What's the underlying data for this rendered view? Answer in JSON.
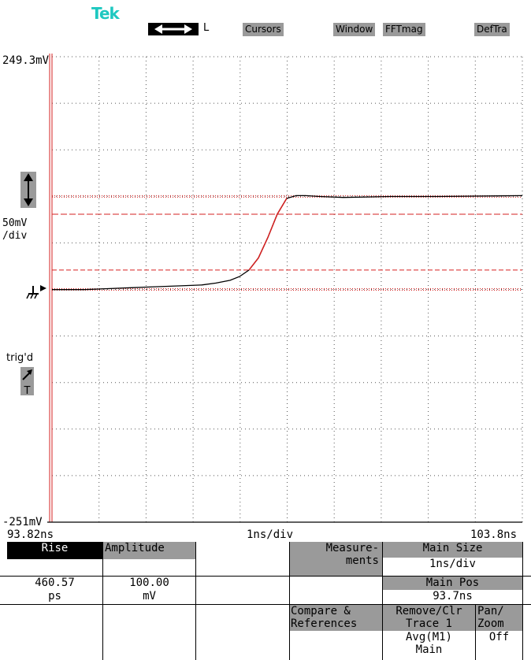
{
  "brand": "Tek",
  "top_bar": {
    "arrow_label": "L",
    "buttons": [
      "Cursors",
      "Window",
      "FFTmag",
      "DefTra"
    ]
  },
  "scope": {
    "y_top_label": "249.3mV",
    "y_bottom_label": "-251mV",
    "volts_div_line1": "50mV",
    "volts_div_line2": "/div",
    "trig_label": "trig'd",
    "trig_t": "T",
    "x_left_label": "93.82ns",
    "x_mid_label": "1ns/div",
    "x_right_label": "103.8ns"
  },
  "chart_data": {
    "type": "line",
    "xlim": [
      93.82,
      103.8
    ],
    "ylim": [
      -251,
      249.3
    ],
    "xunit": "ns",
    "yunit": "mV",
    "grid": true,
    "series": [
      {
        "color": "#000000",
        "x": [
          93.82,
          94.5,
          95.0,
          95.5,
          96.0,
          96.5,
          97.0,
          97.3,
          97.6,
          97.8,
          98.0,
          98.2,
          98.4,
          98.6,
          98.8,
          99.0,
          99.2,
          99.5,
          100.0,
          101.0,
          102.0,
          103.8
        ],
        "y": [
          -1,
          -1,
          0,
          1,
          2,
          3,
          4,
          6,
          9,
          13,
          20,
          33,
          55,
          80,
          97,
          100,
          100,
          99,
          98,
          99,
          99,
          100
        ]
      }
    ],
    "reference_lines_mV": [
      100,
      80,
      20,
      0
    ]
  },
  "measure_panel": {
    "rise_label": "Rise",
    "rise_value": "460.57",
    "rise_unit": "ps",
    "amplitude_label": "Amplitude",
    "amplitude_value": "100.00",
    "amplitude_unit": "mV",
    "measurements_line1": "Measure-",
    "measurements_line2": "ments",
    "main_size_label": "Main Size",
    "main_size_value": "1ns/div",
    "main_pos_label": "Main Pos",
    "main_pos_value": "93.7ns",
    "compare_line1": "Compare &",
    "compare_line2": "References",
    "remove_line1": "Remove/Clr",
    "remove_line2": "Trace 1",
    "remove_line3": "Avg(M1)",
    "remove_line4": "Main",
    "panzoom_line1": "Pan/",
    "panzoom_line2": "Zoom",
    "panzoom_value": "Off"
  }
}
